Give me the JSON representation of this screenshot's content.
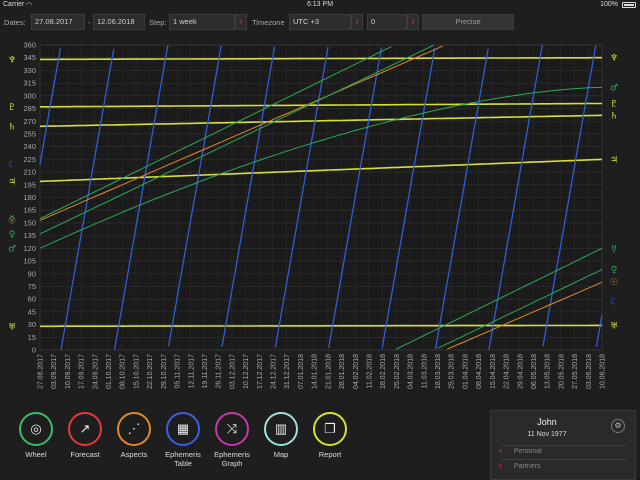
{
  "status_bar": {
    "carrier": "Carrier",
    "time": "6:13 PM",
    "battery": "100%"
  },
  "toolbar": {
    "dates_label": "Dates:",
    "date_from": "27.08.2017",
    "date_sep": "-",
    "date_to": "12.06.2018",
    "step_label": "Step:",
    "step_value": "1 week",
    "timezone_label": "Timezone",
    "timezone_value": "UTC +3",
    "offset_value": "0",
    "precise_label": "Precise",
    "arrow_glyph": "›"
  },
  "chart_data": {
    "type": "line",
    "title": "",
    "xlabel": "",
    "ylabel": "",
    "ylim": [
      0,
      360
    ],
    "y_ticks": [
      0,
      15,
      30,
      45,
      60,
      75,
      90,
      105,
      120,
      135,
      150,
      165,
      180,
      195,
      210,
      225,
      240,
      255,
      270,
      285,
      300,
      315,
      330,
      345,
      360
    ],
    "x_dates": [
      "27.08.2017",
      "03.09.2017",
      "10.09.2017",
      "17.09.2017",
      "24.09.2017",
      "01.10.2017",
      "08.10.2017",
      "15.10.2017",
      "22.10.2017",
      "29.10.2017",
      "05.11.2017",
      "12.11.2017",
      "19.11.2017",
      "26.11.2017",
      "03.12.2017",
      "10.12.2017",
      "17.12.2017",
      "24.12.2017",
      "31.12.2017",
      "07.01.2018",
      "14.01.2018",
      "21.01.2018",
      "28.01.2018",
      "04.02.2018",
      "11.02.2018",
      "18.02.2018",
      "25.02.2018",
      "04.03.2018",
      "11.03.2018",
      "18.03.2018",
      "25.03.2018",
      "01.04.2018",
      "08.04.2018",
      "15.04.2018",
      "22.04.2018",
      "29.04.2018",
      "06.05.2018",
      "13.05.2018",
      "20.05.2018",
      "27.05.2018",
      "03.06.2018",
      "10.06.2018"
    ],
    "grid": true,
    "series": [
      {
        "color": "#d8df3a",
        "glyph": "♆",
        "start": 343,
        "end": 345,
        "kind": "line"
      },
      {
        "color": "#d8df3a",
        "glyph": "♇",
        "start": 287,
        "end": 291,
        "kind": "line"
      },
      {
        "color": "#d8df3a",
        "glyph": "♄",
        "start": 264,
        "end": 277,
        "kind": "line"
      },
      {
        "color": "#d8df3a",
        "glyph": "♃",
        "start": 199,
        "end": 225,
        "kind": "line"
      },
      {
        "color": "#d8df3a",
        "glyph": "♅",
        "start": 28,
        "end": 29,
        "kind": "line"
      },
      {
        "color": "#2f5fd8",
        "glyph": "☾",
        "start": 219,
        "end": 57,
        "kind": "sawtooth"
      },
      {
        "color": "#e08a2a",
        "glyph": "☉",
        "start": 153,
        "end": 80,
        "kind": "wrap"
      },
      {
        "color": "#2da85a",
        "glyph": "☿",
        "start": 155,
        "end": 120,
        "kind": "wrap"
      },
      {
        "color": "#2da85a",
        "glyph": "♀",
        "start": 137,
        "end": 95,
        "kind": "wrap"
      },
      {
        "color": "#2da85a",
        "glyph": "♂",
        "start": 120,
        "end": 310,
        "kind": "line"
      }
    ]
  },
  "nav": [
    {
      "label": "Wheel",
      "icon": "◎",
      "color": "#3dbb6a"
    },
    {
      "label": "Forecast",
      "icon": "↗",
      "color": "#e23a3a"
    },
    {
      "label": "Aspects",
      "icon": "⋰",
      "color": "#e08a2a"
    },
    {
      "label": "Ephemeris Table",
      "icon": "▦",
      "color": "#3a5fe0"
    },
    {
      "label": "Ephemeris Graph",
      "icon": "⤨",
      "color": "#c43aa6"
    },
    {
      "label": "Map",
      "icon": "▥",
      "color": "#9fe0e0"
    },
    {
      "label": "Report",
      "icon": "❐",
      "color": "#d8df3a"
    }
  ],
  "profile": {
    "name": "John",
    "date": "11 Nov 1977",
    "links": [
      "Personal",
      "Partners"
    ]
  }
}
